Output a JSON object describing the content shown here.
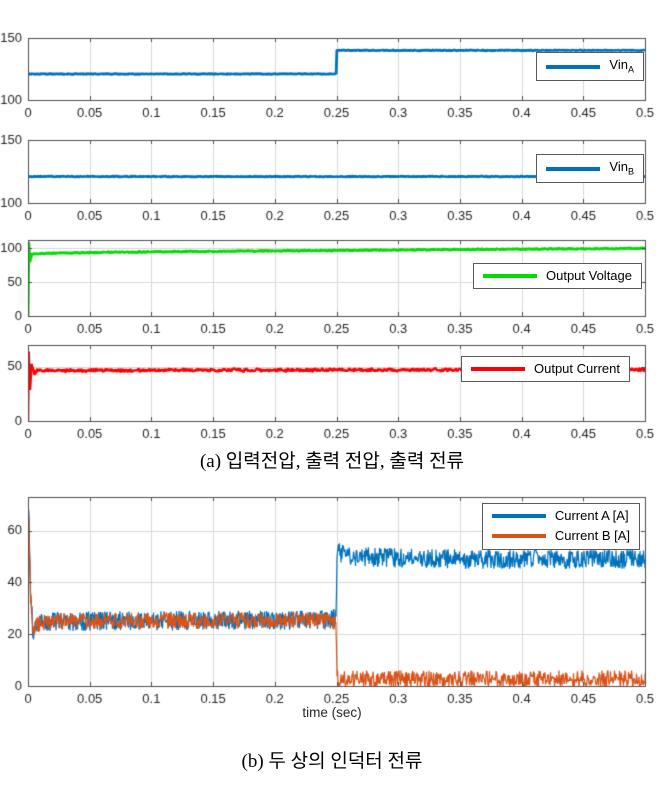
{
  "captions": {
    "a": "(a) 입력전압, 출력 전압, 출력 전류",
    "b": "(b) 두 상의 인덕터 전류"
  },
  "chart_data": [
    {
      "id": "vin-a",
      "type": "line",
      "xlim": [
        0,
        0.5
      ],
      "ylim": [
        100,
        150
      ],
      "x_ticks": [
        0,
        0.05,
        0.1,
        0.15,
        0.2,
        0.25,
        0.3,
        0.35,
        0.4,
        0.45,
        0.5
      ],
      "y_ticks": [
        100,
        150
      ],
      "xlabel": "",
      "grid": true,
      "legend_position": "right-center",
      "series": [
        {
          "name": "Vin_A",
          "color": "#0072BD",
          "width": 2.8,
          "noise": 0.35,
          "points": [
            [
              0,
              121
            ],
            [
              0.2497,
              121
            ],
            [
              0.2503,
              140
            ],
            [
              0.5,
              140
            ]
          ]
        }
      ]
    },
    {
      "id": "vin-b",
      "type": "line",
      "xlim": [
        0,
        0.5
      ],
      "ylim": [
        100,
        150
      ],
      "x_ticks": [
        0,
        0.05,
        0.1,
        0.15,
        0.2,
        0.25,
        0.3,
        0.35,
        0.4,
        0.45,
        0.5
      ],
      "y_ticks": [
        100,
        150
      ],
      "xlabel": "",
      "grid": true,
      "legend_position": "right-center",
      "series": [
        {
          "name": "Vin_B",
          "color": "#0072BD",
          "width": 2.8,
          "noise": 0.35,
          "points": [
            [
              0,
              121
            ],
            [
              0.5,
              121
            ]
          ]
        }
      ]
    },
    {
      "id": "output-voltage",
      "type": "line",
      "xlim": [
        0,
        0.5
      ],
      "ylim": [
        0,
        112
      ],
      "x_ticks": [
        0,
        0.05,
        0.1,
        0.15,
        0.2,
        0.25,
        0.3,
        0.35,
        0.4,
        0.45,
        0.5
      ],
      "y_ticks": [
        0,
        50,
        100
      ],
      "xlabel": "",
      "grid": true,
      "legend_position": "right-center",
      "series": [
        {
          "name": "Output Voltage",
          "color": "#00dc00",
          "width": 3,
          "noise": 0.8,
          "points": [
            [
              0,
              0
            ],
            [
              0.0006,
              109
            ],
            [
              0.0015,
              80
            ],
            [
              0.003,
              91
            ],
            [
              0.01,
              92
            ],
            [
              0.05,
              93.5
            ],
            [
              0.1,
              94.5
            ],
            [
              0.15,
              95.3
            ],
            [
              0.2,
              96
            ],
            [
              0.25,
              96.6
            ],
            [
              0.3,
              97.4
            ],
            [
              0.35,
              98
            ],
            [
              0.4,
              98.6
            ],
            [
              0.45,
              99.1
            ],
            [
              0.5,
              99.5
            ]
          ]
        }
      ]
    },
    {
      "id": "output-current",
      "type": "line",
      "xlim": [
        0,
        0.5
      ],
      "ylim": [
        0,
        70
      ],
      "x_ticks": [
        0,
        0.05,
        0.1,
        0.15,
        0.2,
        0.25,
        0.3,
        0.35,
        0.4,
        0.45,
        0.5
      ],
      "y_ticks": [
        0,
        50
      ],
      "xlabel": "",
      "grid": true,
      "legend_position": "right-upper",
      "series": [
        {
          "name": "Output Current",
          "color": "#ff0000",
          "width": 2.5,
          "noise": 1.6,
          "points": [
            [
              0,
              0
            ],
            [
              0.0006,
              64
            ],
            [
              0.0015,
              28
            ],
            [
              0.003,
              52
            ],
            [
              0.005,
              44
            ],
            [
              0.008,
              47
            ],
            [
              0.02,
              46.5
            ],
            [
              0.1,
              46.8
            ],
            [
              0.3,
              47
            ],
            [
              0.5,
              47.2
            ]
          ]
        }
      ]
    },
    {
      "id": "inductor-currents",
      "type": "line",
      "xlim": [
        0,
        0.5
      ],
      "ylim": [
        0,
        73
      ],
      "x_ticks": [
        0,
        0.05,
        0.1,
        0.15,
        0.2,
        0.25,
        0.3,
        0.35,
        0.4,
        0.45,
        0.5
      ],
      "y_ticks": [
        0,
        20,
        40,
        60
      ],
      "xlabel": "time (sec)",
      "grid": true,
      "legend_position": "top-right",
      "series": [
        {
          "name": "Current A [A]",
          "color": "#0072BD",
          "width": 1.2,
          "noise": 3.8,
          "points": [
            [
              0,
              0
            ],
            [
              0.0006,
              70
            ],
            [
              0.002,
              40
            ],
            [
              0.004,
              20
            ],
            [
              0.008,
              24
            ],
            [
              0.02,
              25
            ],
            [
              0.24,
              25.5
            ],
            [
              0.2495,
              26
            ],
            [
              0.2505,
              52
            ],
            [
              0.26,
              50
            ],
            [
              0.35,
              49
            ],
            [
              0.5,
              49
            ]
          ]
        },
        {
          "name": "Current B [A]",
          "color": "#D95319",
          "width": 1.2,
          "noise": 3.2,
          "points": [
            [
              0,
              0
            ],
            [
              0.0007,
              67
            ],
            [
              0.002,
              35
            ],
            [
              0.004,
              20
            ],
            [
              0.008,
              24
            ],
            [
              0.02,
              25
            ],
            [
              0.24,
              25.5
            ],
            [
              0.2495,
              25
            ],
            [
              0.2505,
              3
            ],
            [
              0.27,
              2.8
            ],
            [
              0.5,
              2.8
            ]
          ]
        }
      ]
    }
  ]
}
